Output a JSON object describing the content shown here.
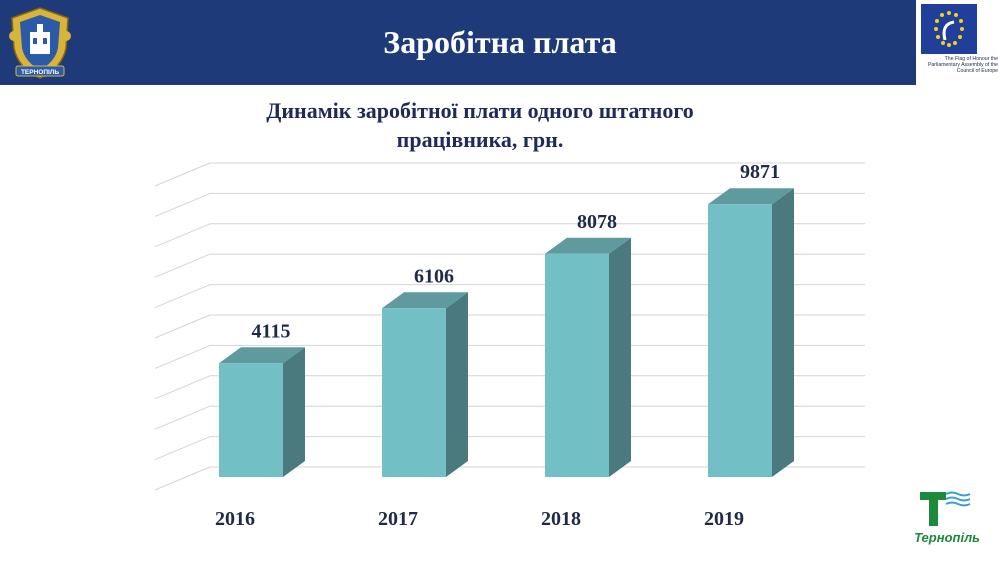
{
  "header": {
    "title": "Заробітна плата",
    "emblem_icon": "ternopil-coat-of-arms-icon",
    "emblem_label": "ТЕРНОПІЛЬ",
    "coe_icon": "council-of-europe-flag-icon",
    "coe_caption": "The Flag of Honour the Parliamentary Assembly of the Council of Europe",
    "header_color": "#1f3a78"
  },
  "footer": {
    "logo_icon": "ternopil-brand-logo-icon",
    "logo_text": "Тернопіль",
    "logo_color": "#1d8a3b"
  },
  "chart_data": {
    "type": "bar",
    "title": "Динамік заробітної плати одного штатного працівника, грн.",
    "title_line1": "Динамік заробітної плати одного штатного",
    "title_line2": "працівника, грн.",
    "categories": [
      "2016",
      "2017",
      "2018",
      "2019"
    ],
    "values": [
      4115,
      6106,
      8078,
      9871
    ],
    "value_labels": [
      "4115",
      "6106",
      "8078",
      "9871"
    ],
    "ylim": [
      0,
      11000
    ],
    "grid": true,
    "legend": "none",
    "style": "3d-column",
    "bar_color": "#72bfc6",
    "bar_side_color": "#4a7a7d",
    "bar_top_color": "#5e9a9e"
  }
}
